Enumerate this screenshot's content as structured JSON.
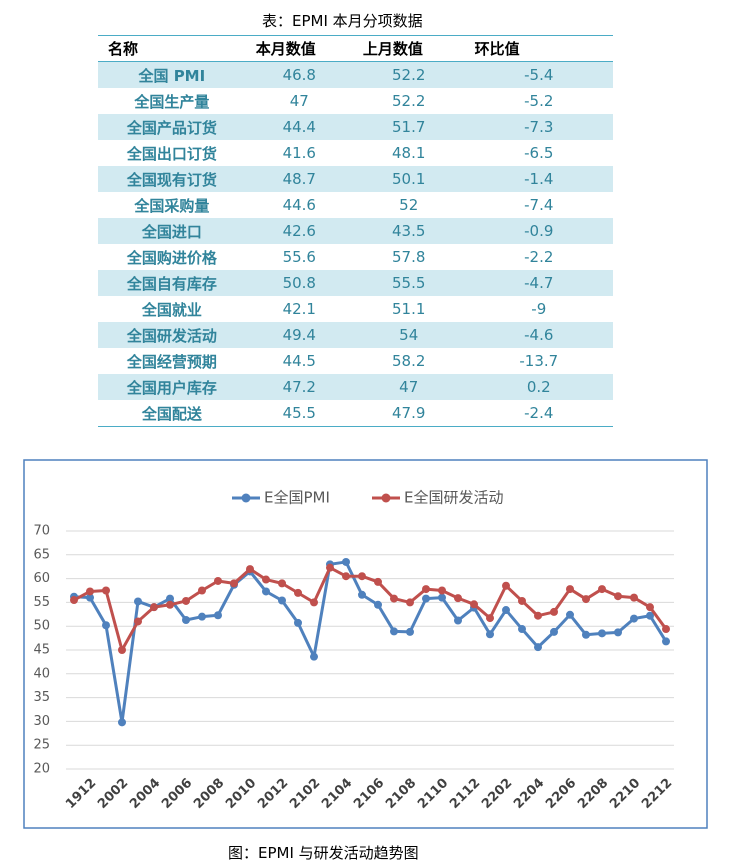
{
  "table_caption": "表：EPMI 本月分项数据",
  "table": {
    "header": [
      "名称",
      "本月数值",
      "上月数值",
      "环比值"
    ],
    "rows": [
      [
        "全国 PMI",
        "46.8",
        "52.2",
        "-5.4"
      ],
      [
        "全国生产量",
        "47",
        "52.2",
        "-5.2"
      ],
      [
        "全国产品订货",
        "44.4",
        "51.7",
        "-7.3"
      ],
      [
        "全国出口订货",
        "41.6",
        "48.1",
        "-6.5"
      ],
      [
        "全国现有订货",
        "48.7",
        "50.1",
        "-1.4"
      ],
      [
        "全国采购量",
        "44.6",
        "52",
        "-7.4"
      ],
      [
        "全国进口",
        "42.6",
        "43.5",
        "-0.9"
      ],
      [
        "全国购进价格",
        "55.6",
        "57.8",
        "-2.2"
      ],
      [
        "全国自有库存",
        "50.8",
        "55.5",
        "-4.7"
      ],
      [
        "全国就业",
        "42.1",
        "51.1",
        "-9"
      ],
      [
        "全国研发活动",
        "49.4",
        "54",
        "-4.6"
      ],
      [
        "全国经营预期",
        "44.5",
        "58.2",
        "-13.7"
      ],
      [
        "全国用户库存",
        "47.2",
        "47",
        "0.2"
      ],
      [
        "全国配送",
        "45.5",
        "47.9",
        "-2.4"
      ]
    ]
  },
  "chart_data": {
    "type": "line",
    "categories": [
      null,
      "1912",
      null,
      "2002",
      null,
      "2004",
      null,
      "2006",
      null,
      "2008",
      null,
      "2010",
      null,
      "2012",
      null,
      "2102",
      null,
      "2104",
      null,
      "2106",
      null,
      "2108",
      null,
      "2110",
      null,
      "2112",
      null,
      "2202",
      null,
      "2204",
      null,
      "2206",
      null,
      "2208",
      null,
      "2210",
      null,
      "2212"
    ],
    "series": [
      {
        "name": "E全国PMI",
        "color": "#4f81bd",
        "values": [
          56.2,
          56,
          50.2,
          29.8,
          55.2,
          54,
          55.8,
          51.3,
          52,
          52.3,
          58.7,
          61.5,
          57.3,
          55.4,
          50.7,
          43.6,
          63,
          63.5,
          56.6,
          54.5,
          48.9,
          48.8,
          55.8,
          56,
          51.2,
          53.9,
          48.3,
          53.4,
          49.4,
          45.6,
          48.8,
          52.4,
          48.2,
          48.5,
          48.7,
          51.6,
          52.2,
          46.8
        ]
      },
      {
        "name": "E全国研发活动",
        "color": "#c0504d",
        "values": [
          55.5,
          57.3,
          57.5,
          45,
          51,
          54,
          54.5,
          55.3,
          57.5,
          59.5,
          59,
          62,
          59.8,
          59,
          57,
          55,
          62.3,
          60.5,
          60.5,
          59.3,
          55.8,
          55,
          57.8,
          57.5,
          55.9,
          54.6,
          51.7,
          58.5,
          55.3,
          52.2,
          53,
          57.8,
          55.7,
          57.8,
          56.3,
          56,
          54,
          49.4
        ]
      }
    ],
    "ylim": [
      20,
      70
    ],
    "yticks": [
      20,
      25,
      30,
      35,
      40,
      45,
      50,
      55,
      60,
      65,
      70
    ],
    "grid": true,
    "legend": "top"
  },
  "figure_caption": "图：EPMI 与研发活动趋势图"
}
